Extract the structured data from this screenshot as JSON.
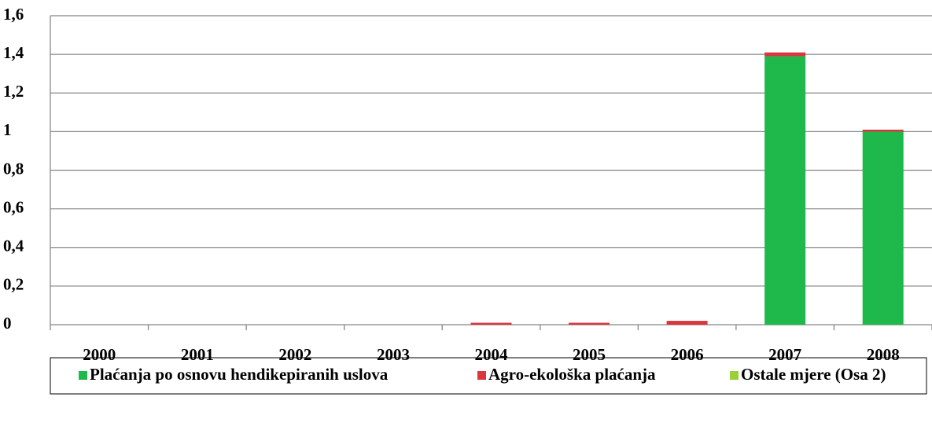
{
  "chart_data": {
    "type": "stacked_bar",
    "categories": [
      "2000",
      "2001",
      "2002",
      "2003",
      "2004",
      "2005",
      "2006",
      "2007",
      "2008"
    ],
    "series": [
      {
        "name": "Plaćanja po osnovu hendikepiranih uslova",
        "color": "#1fb84a",
        "values": [
          0,
          0,
          0,
          0,
          0,
          0,
          0,
          1.39,
          1.0
        ]
      },
      {
        "name": "Agro-ekološka plaćanja",
        "color": "#d9363e",
        "values": [
          0,
          0,
          0,
          0,
          0.01,
          0.01,
          0.02,
          0.02,
          0.01
        ]
      },
      {
        "name": "Ostale mjere (Osa 2)",
        "color": "#9bcf3a",
        "values": [
          0,
          0,
          0,
          0,
          0,
          0,
          0,
          0,
          0
        ]
      }
    ],
    "ylim": [
      0,
      1.6
    ],
    "yticks": [
      0,
      {
        "value": 0.2,
        "label": "0,2"
      },
      {
        "value": 0.4,
        "label": "0,4"
      },
      {
        "value": 0.6,
        "label": "0,6"
      },
      {
        "value": 0.8,
        "label": "0,8"
      },
      1,
      {
        "value": 1.2,
        "label": "1,2"
      },
      {
        "value": 1.4,
        "label": "1,4"
      },
      {
        "value": 1.6,
        "label": "1,6"
      }
    ],
    "grid": true,
    "legend": "bottom"
  }
}
